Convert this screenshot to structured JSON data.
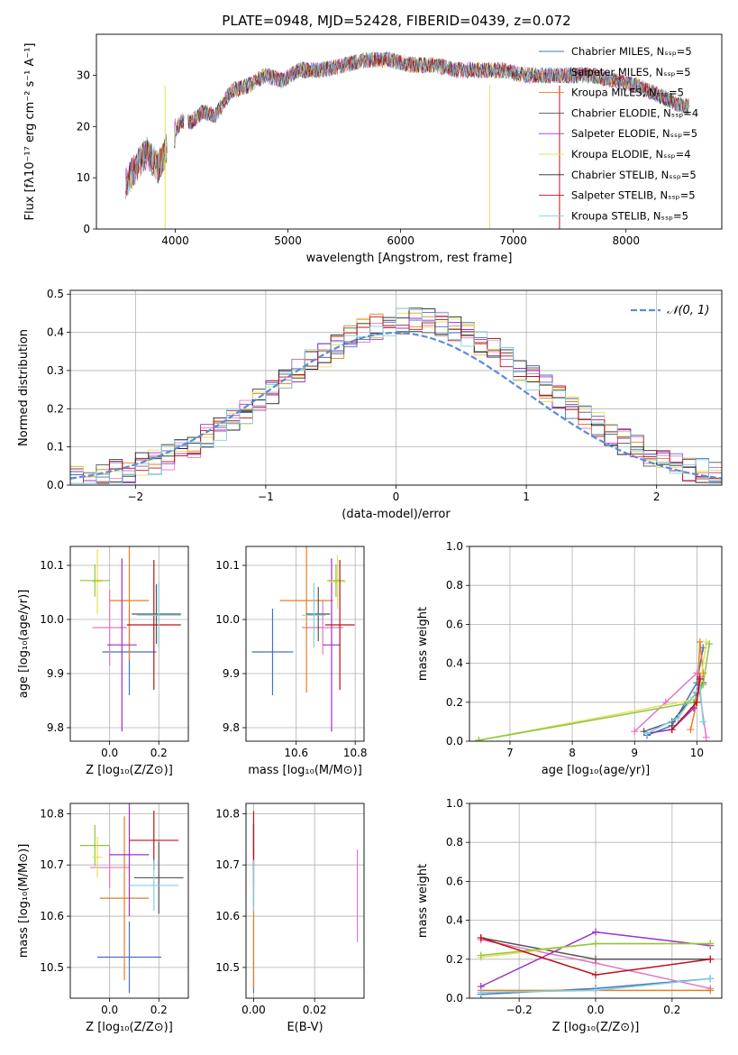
{
  "figure_title": "PLATE=0948, MJD=52428, FIBERID=0439, z=0.072",
  "chart_data": [
    {
      "id": "spectrum",
      "type": "line",
      "xlabel": "wavelength [Angstrom, rest frame]",
      "ylabel": "Flux [fλ10⁻¹⁷ erg cm⁻² s⁻¹ A⁻¹]",
      "xlim": [
        3300,
        8850
      ],
      "ylim": [
        0,
        38
      ],
      "xticks": [
        4000,
        5000,
        6000,
        7000,
        8000
      ],
      "yticks": [
        0,
        10,
        20,
        30
      ],
      "grid": false,
      "legend_position": "top-right",
      "continuum_x": [
        3560,
        3650,
        3750,
        3850,
        3950,
        4050,
        4150,
        4250,
        4350,
        4500,
        4650,
        4800,
        4950,
        5100,
        5300,
        5500,
        5700,
        5900,
        6100,
        6300,
        6500,
        6700,
        6900,
        7100,
        7300,
        7500,
        7700,
        7900,
        8100,
        8300,
        8500
      ],
      "continuum_y": [
        9,
        12,
        15,
        12,
        17,
        21,
        21,
        23,
        22,
        27,
        28,
        30,
        29,
        31,
        31,
        32,
        33,
        33,
        32,
        32,
        31,
        31,
        31,
        30,
        30,
        30,
        30,
        29,
        28,
        26,
        24
      ],
      "series": [
        {
          "name": "Chabrier MILES, Nₛₛₚ=5",
          "color": "#4472c4"
        },
        {
          "name": "Salpeter MILES, Nₛₛₚ=5",
          "color": "#e377c2"
        },
        {
          "name": "Kroupa MILES, Nₛₛₚ=5",
          "color": "#e67e22"
        },
        {
          "name": "Chabrier ELODIE, Nₛₛₚ=4",
          "color": "#555555"
        },
        {
          "name": "Salpeter ELODIE, Nₛₛₚ=5",
          "color": "#9b30c9"
        },
        {
          "name": "Kroupa ELODIE, Nₛₛₚ=4",
          "color": "#e5e05a"
        },
        {
          "name": "Chabrier STELIB, Nₛₛₚ=5",
          "color": "#222222"
        },
        {
          "name": "Salpeter STELIB, Nₛₛₚ=5",
          "color": "#c0101a"
        },
        {
          "name": "Kroupa STELIB, Nₛₛₚ=5",
          "color": "#7fd0e0"
        }
      ]
    },
    {
      "id": "residuals",
      "type": "line",
      "xlabel": "(data-model)/error",
      "ylabel": "Normed distribution",
      "xlim": [
        -2.5,
        2.5
      ],
      "ylim": [
        0,
        0.51
      ],
      "xticks": [
        -2,
        -1,
        0,
        1,
        2
      ],
      "xtick_labels": [
        "−2",
        "−1",
        "0",
        "1",
        "2"
      ],
      "yticks": [
        0.0,
        0.1,
        0.2,
        0.3,
        0.4,
        0.5
      ],
      "ytick_labels": [
        "0.0",
        "0.1",
        "0.2",
        "0.3",
        "0.4",
        "0.5"
      ],
      "grid": true,
      "legend_position": "top-right",
      "normal_label": "𝒩(0, 1)",
      "normal_color": "#5b8bd8",
      "hist_colors": [
        "#4472c4",
        "#e377c2",
        "#e67e22",
        "#555555",
        "#9b30c9",
        "#e5e05a",
        "#222222",
        "#c0101a",
        "#7fd0e0"
      ]
    },
    {
      "id": "age_vs_Z",
      "type": "scatter",
      "xlabel": "Z [log₁₀(Z/Z⊙)]",
      "ylabel": "age  [log₁₀(age/yr)]",
      "xlim": [
        -0.16,
        0.32
      ],
      "ylim": [
        9.775,
        10.135
      ],
      "xticks": [
        0.0,
        0.2
      ],
      "xtick_labels": [
        "0.0",
        "0.2"
      ],
      "yticks": [
        9.8,
        9.9,
        10.0,
        10.1
      ],
      "ytick_labels": [
        "9.8",
        "9.9",
        "10.0",
        "10.1"
      ],
      "grid": true,
      "points": [
        {
          "x": 0.08,
          "y": 9.94,
          "xerr": 0.11,
          "yerr": 0.08,
          "color": "#4472c4"
        },
        {
          "x": 0.0,
          "y": 9.985,
          "xerr": 0.07,
          "yerr": 0.07,
          "color": "#e377c2"
        },
        {
          "x": 0.08,
          "y": 10.035,
          "xerr": 0.08,
          "yerr": 0.11,
          "color": "#e67e22"
        },
        {
          "x": 0.19,
          "y": 10.01,
          "xerr": 0.1,
          "yerr": 0.055,
          "color": "#555555"
        },
        {
          "x": 0.05,
          "y": 9.953,
          "xerr": 0.06,
          "yerr": 0.16,
          "color": "#9b30c9"
        },
        {
          "x": -0.05,
          "y": 10.07,
          "xerr": 0.02,
          "yerr": 0.06,
          "color": "#e5e05a"
        },
        {
          "x": -0.06,
          "y": 10.072,
          "xerr": 0.06,
          "yerr": 0.03,
          "color": "#8ec63f"
        },
        {
          "x": 0.18,
          "y": 9.99,
          "xerr": 0.11,
          "yerr": 0.12,
          "color": "#c0101a"
        },
        {
          "x": 0.2,
          "y": 10.008,
          "xerr": 0.09,
          "yerr": 0.06,
          "color": "#7fd0e0"
        }
      ]
    },
    {
      "id": "age_vs_mass",
      "type": "scatter",
      "xlabel": "mass [log₁₀(M/M⊙)]",
      "ylabel": "",
      "xlim": [
        10.43,
        10.83
      ],
      "ylim": [
        9.775,
        10.135
      ],
      "xticks": [
        10.6,
        10.8
      ],
      "xtick_labels": [
        "10.6",
        "10.8"
      ],
      "yticks": [
        9.8,
        9.9,
        10.0,
        10.1
      ],
      "ytick_labels": [
        "9.8",
        "9.9",
        "10.0",
        "10.1"
      ],
      "grid": true,
      "points": [
        {
          "x": 10.52,
          "y": 9.94,
          "xerr": 0.07,
          "yerr": 0.08,
          "color": "#4472c4"
        },
        {
          "x": 10.69,
          "y": 9.985,
          "xerr": 0.07,
          "yerr": 0.05,
          "color": "#e377c2"
        },
        {
          "x": 10.635,
          "y": 10.035,
          "xerr": 0.09,
          "yerr": 0.17,
          "color": "#e67e22"
        },
        {
          "x": 10.675,
          "y": 10.01,
          "xerr": 0.04,
          "yerr": 0.05,
          "color": "#555555"
        },
        {
          "x": 10.72,
          "y": 9.953,
          "xerr": 0.03,
          "yerr": 0.16,
          "color": "#9b30c9"
        },
        {
          "x": 10.74,
          "y": 10.07,
          "xerr": 0.03,
          "yerr": 0.05,
          "color": "#e5e05a"
        },
        {
          "x": 10.735,
          "y": 10.072,
          "xerr": 0.03,
          "yerr": 0.03,
          "color": "#8ec63f"
        },
        {
          "x": 10.748,
          "y": 9.99,
          "xerr": 0.05,
          "yerr": 0.12,
          "color": "#c0101a"
        },
        {
          "x": 10.66,
          "y": 10.008,
          "xerr": 0.04,
          "yerr": 0.06,
          "color": "#7fd0e0"
        }
      ]
    },
    {
      "id": "massweight_vs_age",
      "type": "line",
      "xlabel": "age  [log₁₀(age/yr)]",
      "ylabel": "mass weight",
      "xlim": [
        6.35,
        10.4
      ],
      "ylim": [
        0,
        1
      ],
      "xticks": [
        7,
        8,
        9,
        10
      ],
      "xtick_labels": [
        "7",
        "8",
        "9",
        "10"
      ],
      "yticks": [
        0.0,
        0.2,
        0.4,
        0.6,
        0.8,
        1.0
      ],
      "ytick_labels": [
        "0.0",
        "0.2",
        "0.4",
        "0.6",
        "0.8",
        "1.0"
      ],
      "grid": true,
      "series": [
        {
          "color": "#4472c4",
          "x": [
            9.2,
            9.6,
            10.0,
            10.1
          ],
          "y": [
            0.03,
            0.08,
            0.3,
            0.48
          ]
        },
        {
          "color": "#e377c2",
          "x": [
            9.0,
            9.5,
            10.0,
            10.15
          ],
          "y": [
            0.05,
            0.2,
            0.35,
            0.02
          ]
        },
        {
          "color": "#e67e22",
          "x": [
            9.9,
            10.0,
            10.05,
            10.1
          ],
          "y": [
            0.06,
            0.2,
            0.51,
            0.35
          ]
        },
        {
          "color": "#555555",
          "x": [
            9.15,
            9.6,
            10.0,
            10.1
          ],
          "y": [
            0.05,
            0.1,
            0.25,
            0.3
          ]
        },
        {
          "color": "#9b30c9",
          "x": [
            9.2,
            9.6,
            9.95,
            10.05
          ],
          "y": [
            0.04,
            0.06,
            0.17,
            0.33
          ]
        },
        {
          "color": "#e5e05a",
          "x": [
            6.5,
            9.9,
            10.05,
            10.15
          ],
          "y": [
            0.005,
            0.21,
            0.28,
            0.51
          ]
        },
        {
          "color": "#8ec63f",
          "x": [
            6.5,
            9.95,
            10.1,
            10.2
          ],
          "y": [
            0.005,
            0.2,
            0.29,
            0.5
          ]
        },
        {
          "color": "#7fd0e0",
          "x": [
            9.2,
            9.7,
            10.05,
            10.1
          ],
          "y": [
            0.04,
            0.12,
            0.28,
            0.1
          ]
        },
        {
          "color": "#c0101a",
          "x": [
            9.6,
            10.0,
            10.05
          ],
          "y": [
            0.06,
            0.2,
            0.32
          ]
        }
      ]
    },
    {
      "id": "mass_vs_Z",
      "type": "scatter",
      "xlabel": "Z [log₁₀(Z/Z⊙)]",
      "ylabel": "mass [log₁₀(M/M⊙)]",
      "xlim": [
        -0.16,
        0.32
      ],
      "ylim": [
        10.44,
        10.82
      ],
      "xticks": [
        0.0,
        0.2
      ],
      "xtick_labels": [
        "0.0",
        "0.2"
      ],
      "yticks": [
        10.5,
        10.6,
        10.7,
        10.8
      ],
      "ytick_labels": [
        "10.5",
        "10.6",
        "10.7",
        "10.8"
      ],
      "grid": true,
      "points": [
        {
          "x": 0.08,
          "y": 10.52,
          "xerr": 0.13,
          "yerr": 0.07,
          "color": "#4472c4"
        },
        {
          "x": 0.0,
          "y": 10.695,
          "xerr": 0.08,
          "yerr": 0.04,
          "color": "#e377c2"
        },
        {
          "x": 0.06,
          "y": 10.635,
          "xerr": 0.1,
          "yerr": 0.16,
          "color": "#e67e22"
        },
        {
          "x": 0.2,
          "y": 10.675,
          "xerr": 0.1,
          "yerr": 0.07,
          "color": "#555555"
        },
        {
          "x": 0.08,
          "y": 10.72,
          "xerr": 0.08,
          "yerr": 0.12,
          "color": "#9b30c9"
        },
        {
          "x": -0.06,
          "y": 10.738,
          "xerr": 0.06,
          "yerr": 0.04,
          "color": "#8ec63f"
        },
        {
          "x": -0.05,
          "y": 10.715,
          "xerr": 0.02,
          "yerr": 0.04,
          "color": "#e5e05a"
        },
        {
          "x": 0.18,
          "y": 10.748,
          "xerr": 0.1,
          "yerr": 0.058,
          "color": "#c0101a"
        },
        {
          "x": 0.18,
          "y": 10.66,
          "xerr": 0.1,
          "yerr": 0.05,
          "color": "#7fd0e0"
        }
      ]
    },
    {
      "id": "mass_vs_EBV",
      "type": "scatter",
      "xlabel": "E(B-V)",
      "ylabel": "",
      "xlim": [
        -0.0025,
        0.0362
      ],
      "ylim": [
        10.44,
        10.82
      ],
      "xticks": [
        0.0,
        0.02
      ],
      "xtick_labels": [
        "0.00",
        "0.02"
      ],
      "yticks": [
        10.5,
        10.6,
        10.7,
        10.8
      ],
      "ytick_labels": [
        "10.5",
        "10.6",
        "10.7",
        "10.8"
      ],
      "grid": true,
      "points": [
        {
          "x": 0.0,
          "y": 10.52,
          "xerr": 0,
          "yerr": 0.07,
          "color": "#4472c4"
        },
        {
          "x": 0.034,
          "y": 10.64,
          "xerr": 0,
          "yerr": 0.09,
          "color": "#e377c2"
        },
        {
          "x": 0.0,
          "y": 10.6,
          "xerr": 0,
          "yerr": 0.14,
          "color": "#e67e22"
        },
        {
          "x": 0.0,
          "y": 10.7,
          "xerr": 0,
          "yerr": 0.08,
          "color": "#555555"
        },
        {
          "x": 0.0,
          "y": 10.72,
          "xerr": 0,
          "yerr": 0.06,
          "color": "#9b30c9"
        },
        {
          "x": 0.0,
          "y": 10.74,
          "xerr": 0,
          "yerr": 0.04,
          "color": "#8ec63f"
        },
        {
          "x": 0.0,
          "y": 10.75,
          "xerr": 0,
          "yerr": 0.055,
          "color": "#c0101a"
        },
        {
          "x": 0.0,
          "y": 10.66,
          "xerr": 0,
          "yerr": 0.05,
          "color": "#7fd0e0"
        }
      ]
    },
    {
      "id": "massweight_vs_Z",
      "type": "line",
      "xlabel": "Z [log₁₀(Z/Z⊙)]",
      "ylabel": "mass weight",
      "xlim": [
        -0.33,
        0.33
      ],
      "ylim": [
        0,
        1
      ],
      "xticks": [
        -0.2,
        0.0,
        0.2
      ],
      "xtick_labels": [
        "−0.2",
        "0.0",
        "0.2"
      ],
      "yticks": [
        0.0,
        0.2,
        0.4,
        0.6,
        0.8,
        1.0
      ],
      "ytick_labels": [
        "0.0",
        "0.2",
        "0.4",
        "0.6",
        "0.8",
        "1.0"
      ],
      "grid": true,
      "series": [
        {
          "color": "#4472c4",
          "x": [
            -0.3,
            0.0,
            0.3
          ],
          "y": [
            0.02,
            0.05,
            0.1
          ]
        },
        {
          "color": "#e377c2",
          "x": [
            -0.3,
            0.0,
            0.3
          ],
          "y": [
            0.3,
            0.18,
            0.05
          ]
        },
        {
          "color": "#e67e22",
          "x": [
            -0.3,
            0.0,
            0.3
          ],
          "y": [
            0.04,
            0.04,
            0.04
          ]
        },
        {
          "color": "#555555",
          "x": [
            -0.3,
            0.0,
            0.3
          ],
          "y": [
            0.31,
            0.2,
            0.2
          ]
        },
        {
          "color": "#9b30c9",
          "x": [
            -0.3,
            0.0,
            0.3
          ],
          "y": [
            0.06,
            0.34,
            0.27
          ]
        },
        {
          "color": "#e5e05a",
          "x": [
            -0.3,
            0.0,
            0.3
          ],
          "y": [
            0.21,
            0.28,
            0.28
          ]
        },
        {
          "color": "#8ec63f",
          "x": [
            -0.3,
            0.0,
            0.3
          ],
          "y": [
            0.22,
            0.28,
            0.28
          ]
        },
        {
          "color": "#c0101a",
          "x": [
            -0.3,
            0.0,
            0.3
          ],
          "y": [
            0.31,
            0.12,
            0.2
          ]
        },
        {
          "color": "#7fd0e0",
          "x": [
            -0.3,
            0.0,
            0.3
          ],
          "y": [
            0.03,
            0.04,
            0.1
          ]
        }
      ]
    }
  ]
}
